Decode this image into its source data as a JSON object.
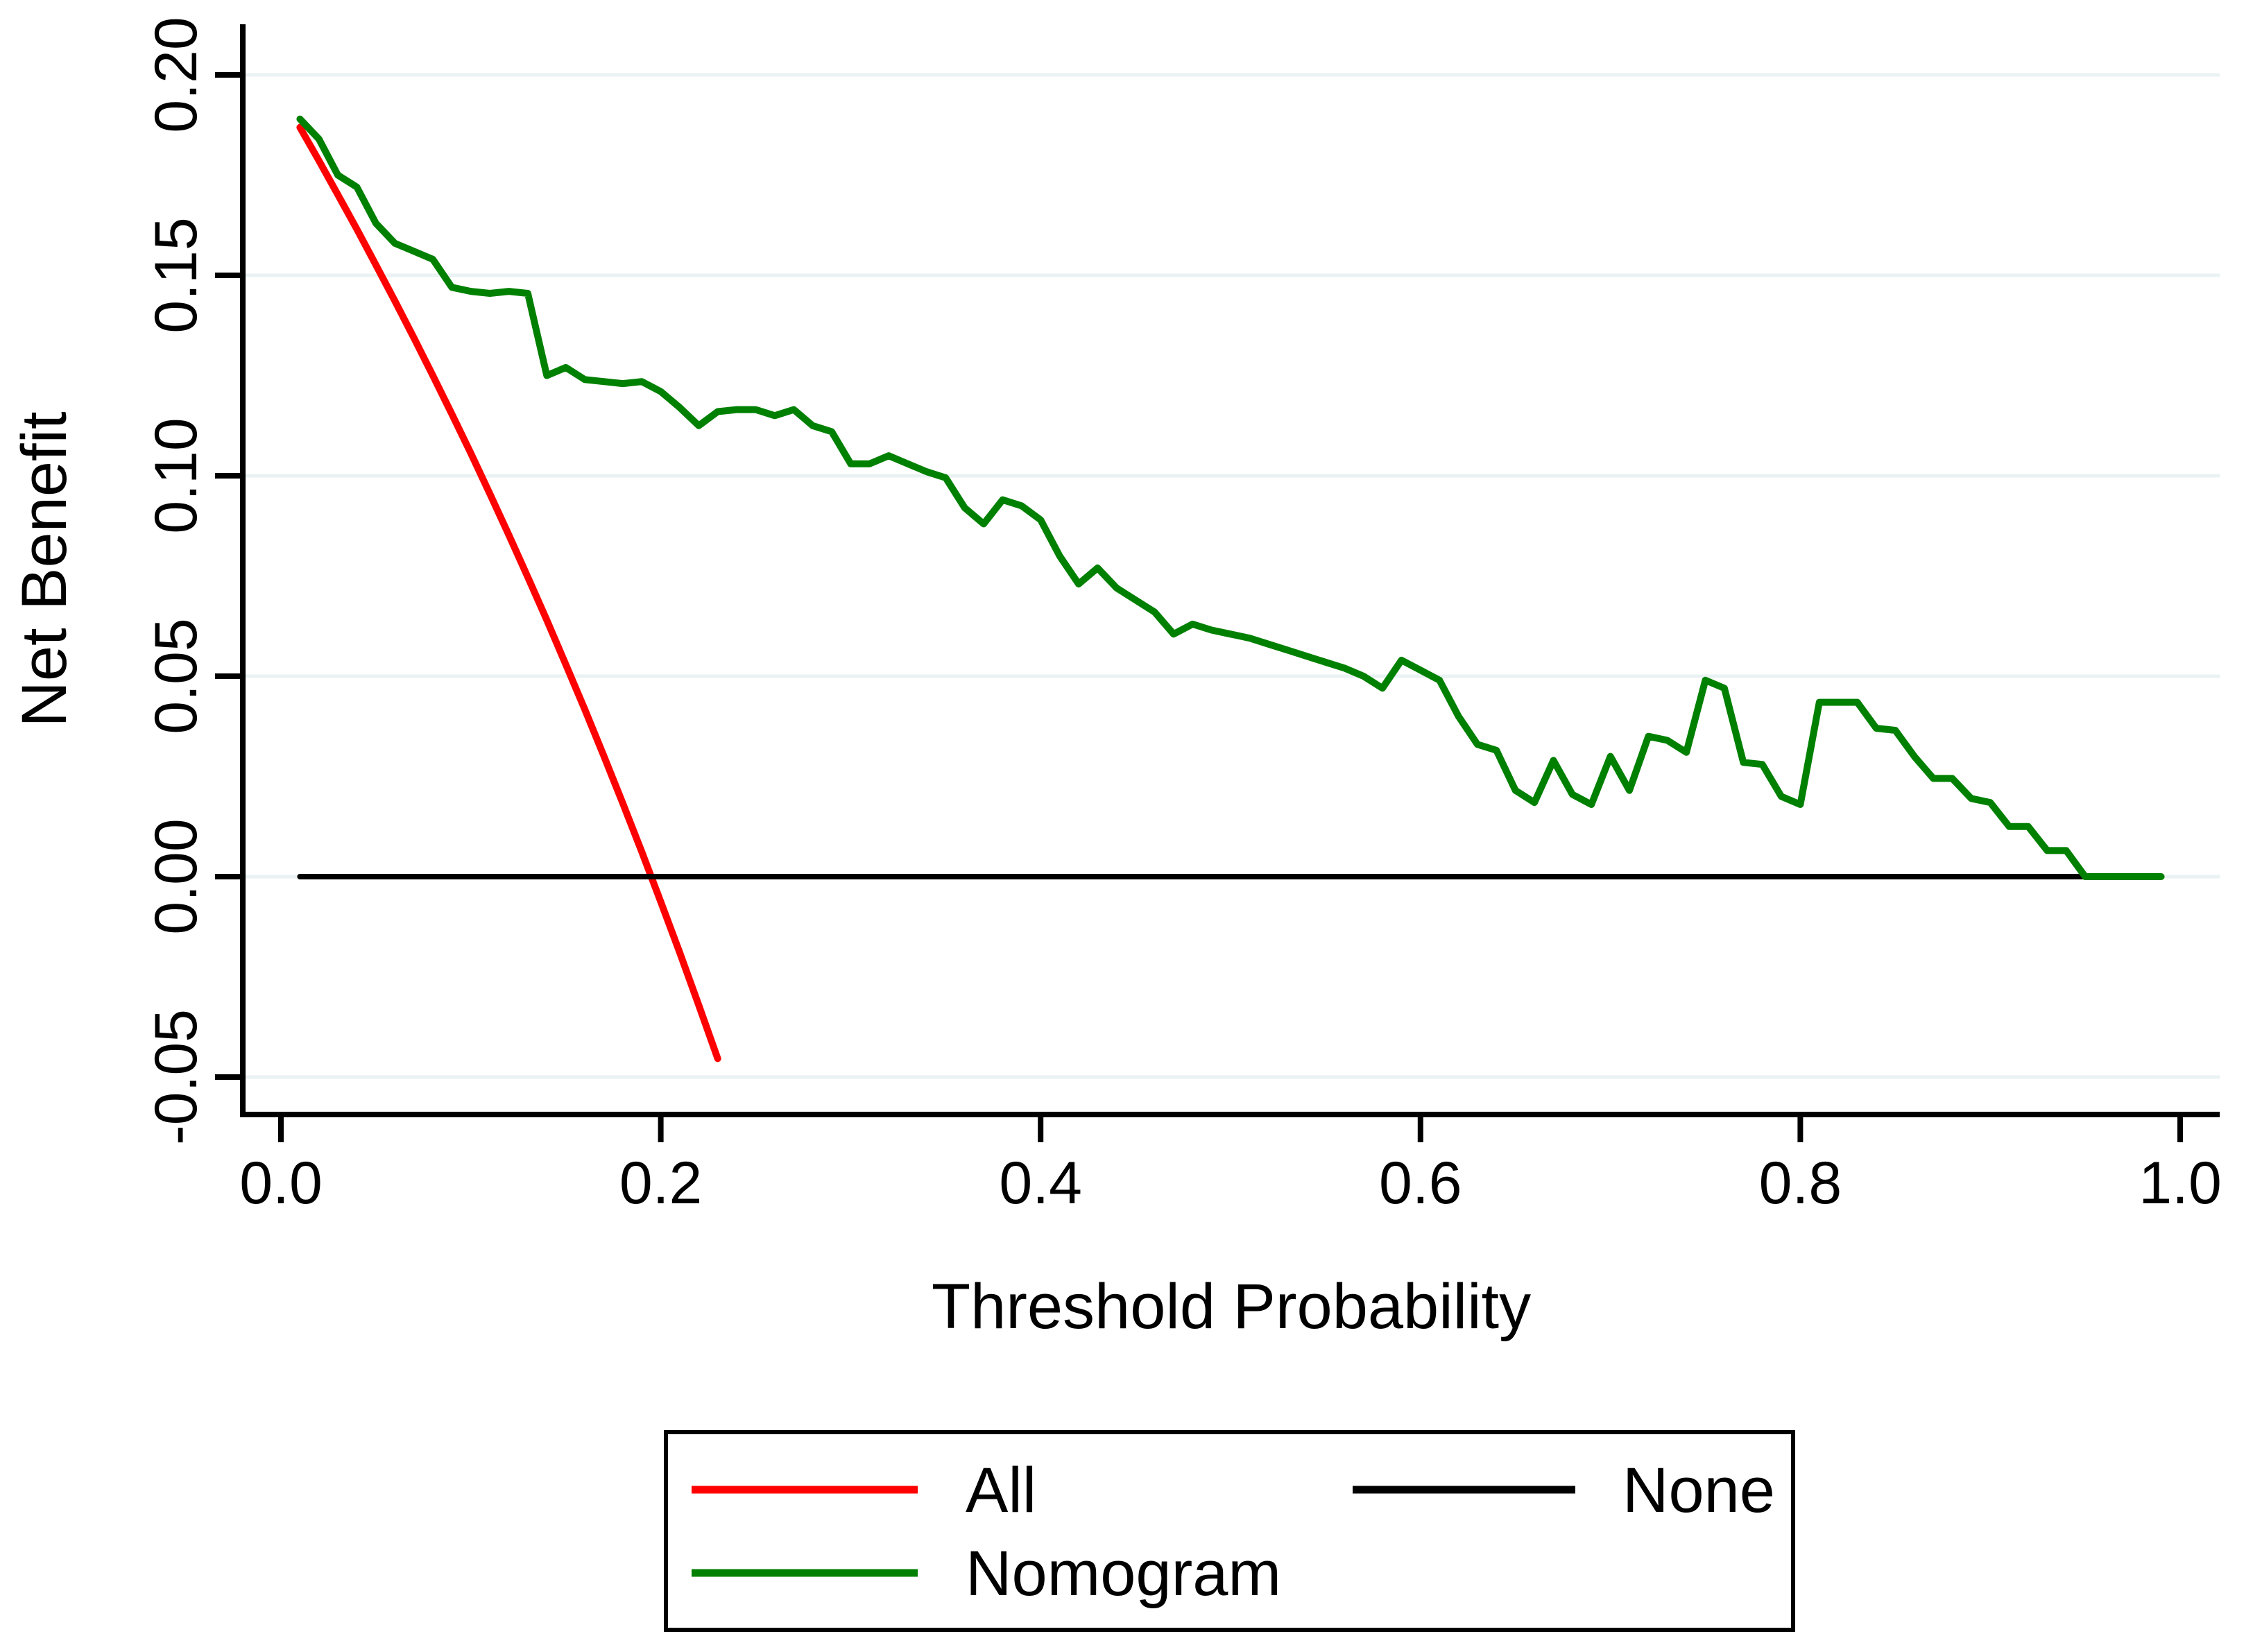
{
  "figure": {
    "background": "#ffffff",
    "text_color": "#000000",
    "gridline_color": "#eaf2f3",
    "axis_color": "#000000"
  },
  "chart_data": {
    "type": "line",
    "title": "",
    "xlabel": "Threshold Probability",
    "ylabel": "Net Benefit",
    "xlim": [
      0.0,
      1.0
    ],
    "ylim": [
      -0.05,
      0.2
    ],
    "grid": "horizontal-only",
    "legend_position": "bottom",
    "x_ticks": [
      0.0,
      0.2,
      0.4,
      0.6,
      0.8,
      1.0
    ],
    "x_tick_labels": [
      "0.0",
      "0.2",
      "0.4",
      "0.6",
      "0.8",
      "1.0"
    ],
    "y_ticks": [
      -0.05,
      0.0,
      0.05,
      0.1,
      0.15,
      0.2
    ],
    "y_tick_labels": [
      "-0.05",
      "0.00",
      "0.05",
      "0.10",
      "0.15",
      "0.20"
    ],
    "series": [
      {
        "name": "All",
        "color": "#ff0000",
        "stroke_width": 10,
        "points": [
          [
            0.01,
            0.1869
          ],
          [
            0.02,
            0.1786
          ],
          [
            0.03,
            0.1701
          ],
          [
            0.04,
            0.1615
          ],
          [
            0.05,
            0.1526
          ],
          [
            0.06,
            0.1436
          ],
          [
            0.07,
            0.1344
          ],
          [
            0.08,
            0.125
          ],
          [
            0.09,
            0.1154
          ],
          [
            0.1,
            0.1056
          ],
          [
            0.11,
            0.0955
          ],
          [
            0.12,
            0.0852
          ],
          [
            0.13,
            0.0747
          ],
          [
            0.14,
            0.064
          ],
          [
            0.15,
            0.0529
          ],
          [
            0.16,
            0.0417
          ],
          [
            0.17,
            0.0301
          ],
          [
            0.18,
            0.0183
          ],
          [
            0.19,
            0.0062
          ],
          [
            0.2,
            -0.0063
          ],
          [
            0.21,
            -0.019
          ],
          [
            0.22,
            -0.0321
          ],
          [
            0.23,
            -0.0454
          ]
        ]
      },
      {
        "name": "None",
        "color": "#000000",
        "stroke_width": 8,
        "points": [
          [
            0.01,
            0.0
          ],
          [
            0.95,
            0.0
          ]
        ]
      },
      {
        "name": "Nomogram",
        "color": "#008000",
        "stroke_width": 10,
        "points": [
          [
            0.01,
            0.189
          ],
          [
            0.02,
            0.184
          ],
          [
            0.03,
            0.175
          ],
          [
            0.04,
            0.172
          ],
          [
            0.05,
            0.163
          ],
          [
            0.06,
            0.158
          ],
          [
            0.07,
            0.156
          ],
          [
            0.08,
            0.154
          ],
          [
            0.09,
            0.147
          ],
          [
            0.1,
            0.146
          ],
          [
            0.11,
            0.1455
          ],
          [
            0.12,
            0.146
          ],
          [
            0.13,
            0.1455
          ],
          [
            0.14,
            0.125
          ],
          [
            0.15,
            0.127
          ],
          [
            0.16,
            0.124
          ],
          [
            0.17,
            0.1235
          ],
          [
            0.18,
            0.123
          ],
          [
            0.19,
            0.1235
          ],
          [
            0.2,
            0.121
          ],
          [
            0.21,
            0.117
          ],
          [
            0.22,
            0.1125
          ],
          [
            0.23,
            0.116
          ],
          [
            0.24,
            0.1165
          ],
          [
            0.25,
            0.1165
          ],
          [
            0.26,
            0.115
          ],
          [
            0.27,
            0.1165
          ],
          [
            0.28,
            0.1125
          ],
          [
            0.29,
            0.111
          ],
          [
            0.3,
            0.103
          ],
          [
            0.31,
            0.103
          ],
          [
            0.32,
            0.105
          ],
          [
            0.33,
            0.103
          ],
          [
            0.34,
            0.101
          ],
          [
            0.35,
            0.0995
          ],
          [
            0.36,
            0.092
          ],
          [
            0.37,
            0.088
          ],
          [
            0.38,
            0.094
          ],
          [
            0.39,
            0.0925
          ],
          [
            0.4,
            0.089
          ],
          [
            0.41,
            0.08
          ],
          [
            0.42,
            0.073
          ],
          [
            0.43,
            0.077
          ],
          [
            0.44,
            0.072
          ],
          [
            0.45,
            0.069
          ],
          [
            0.46,
            0.066
          ],
          [
            0.47,
            0.0605
          ],
          [
            0.48,
            0.063
          ],
          [
            0.49,
            0.0615
          ],
          [
            0.5,
            0.0605
          ],
          [
            0.51,
            0.0595
          ],
          [
            0.52,
            0.058
          ],
          [
            0.53,
            0.0565
          ],
          [
            0.54,
            0.055
          ],
          [
            0.55,
            0.0535
          ],
          [
            0.56,
            0.052
          ],
          [
            0.57,
            0.05
          ],
          [
            0.58,
            0.047
          ],
          [
            0.59,
            0.054
          ],
          [
            0.6,
            0.0515
          ],
          [
            0.61,
            0.049
          ],
          [
            0.62,
            0.04
          ],
          [
            0.63,
            0.033
          ],
          [
            0.64,
            0.0315
          ],
          [
            0.65,
            0.0215
          ],
          [
            0.66,
            0.0185
          ],
          [
            0.67,
            0.029
          ],
          [
            0.68,
            0.0205
          ],
          [
            0.69,
            0.018
          ],
          [
            0.7,
            0.03
          ],
          [
            0.71,
            0.0215
          ],
          [
            0.72,
            0.035
          ],
          [
            0.73,
            0.034
          ],
          [
            0.74,
            0.031
          ],
          [
            0.75,
            0.049
          ],
          [
            0.76,
            0.047
          ],
          [
            0.77,
            0.0285
          ],
          [
            0.78,
            0.028
          ],
          [
            0.79,
            0.02
          ],
          [
            0.8,
            0.018
          ],
          [
            0.81,
            0.0435
          ],
          [
            0.82,
            0.0435
          ],
          [
            0.83,
            0.0435
          ],
          [
            0.84,
            0.037
          ],
          [
            0.85,
            0.0365
          ],
          [
            0.86,
            0.03
          ],
          [
            0.87,
            0.0245
          ],
          [
            0.88,
            0.0245
          ],
          [
            0.89,
            0.0195
          ],
          [
            0.9,
            0.0185
          ],
          [
            0.91,
            0.0125
          ],
          [
            0.92,
            0.0125
          ],
          [
            0.93,
            0.0065
          ],
          [
            0.94,
            0.0065
          ],
          [
            0.95,
            0.0
          ],
          [
            0.96,
            0.0
          ],
          [
            0.97,
            0.0
          ],
          [
            0.98,
            0.0
          ],
          [
            0.99,
            0.0
          ]
        ]
      }
    ]
  },
  "legend": {
    "items": [
      {
        "label": "All",
        "color": "#ff0000"
      },
      {
        "label": "None",
        "color": "#000000"
      },
      {
        "label": "Nomogram",
        "color": "#008000"
      }
    ]
  }
}
